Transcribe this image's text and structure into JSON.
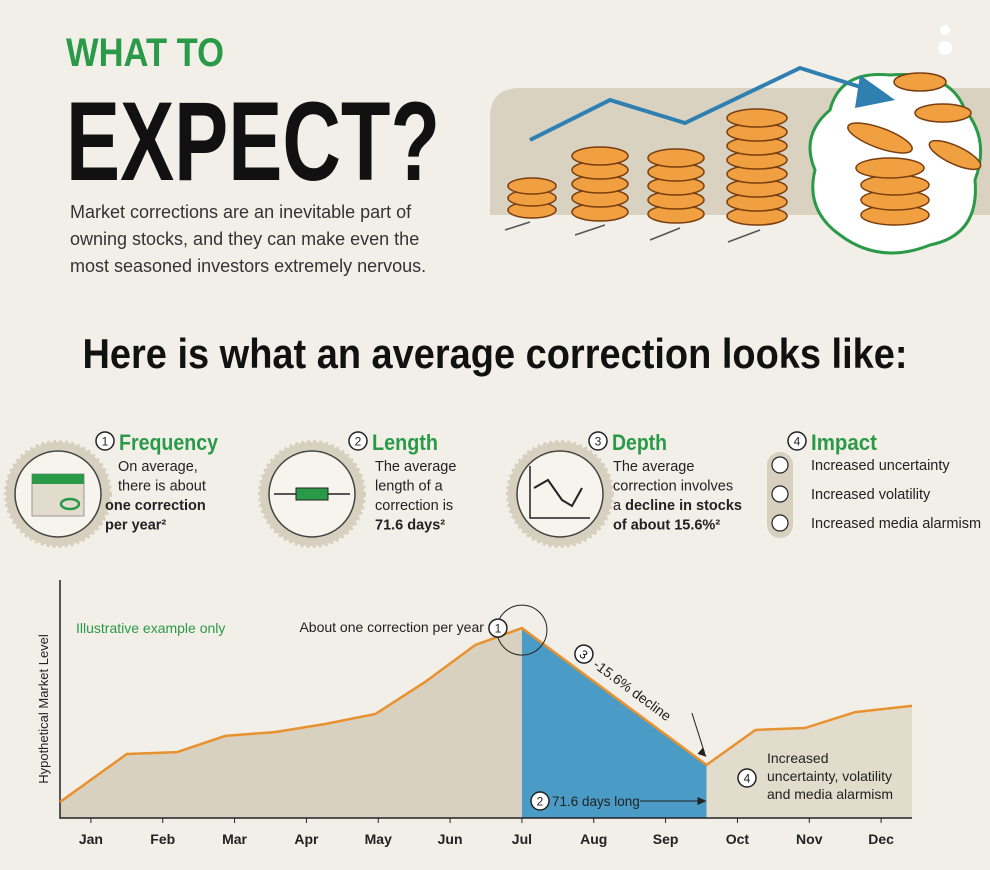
{
  "header": {
    "kicker": "WHAT TO",
    "title": "EXPECT?",
    "intro": [
      "Market corrections are an inevitable part of",
      "owning stocks, and they can make even the",
      "most seasoned investors extremely nervous."
    ]
  },
  "heading": "Here is what an average correction looks like:",
  "stats": [
    {
      "number": "1",
      "title": "Frequency",
      "lines": [
        [
          {
            "text": "On average,"
          }
        ],
        [
          {
            "text": "there is about"
          }
        ],
        [
          {
            "text": "one correction",
            "bold": true
          }
        ],
        [
          {
            "text": "per year²",
            "bold": true
          }
        ]
      ]
    },
    {
      "number": "2",
      "title": "Length",
      "lines": [
        [
          {
            "text": "The average"
          }
        ],
        [
          {
            "text": "length of a"
          }
        ],
        [
          {
            "text": "correction is"
          }
        ],
        [
          {
            "text": "71.6 days²",
            "bold": true
          }
        ]
      ]
    },
    {
      "number": "3",
      "title": "Depth",
      "lines": [
        [
          {
            "text": "The average"
          }
        ],
        [
          {
            "text": "correction involves"
          }
        ],
        [
          {
            "text": "a "
          },
          {
            "text": "decline in stocks",
            "bold": true
          }
        ],
        [
          {
            "text": "of about 15.6%²",
            "bold": true
          }
        ]
      ]
    },
    {
      "number": "4",
      "title": "Impact",
      "items": [
        "Increased uncertainty",
        "Increased volatility",
        "Increased media alarmism"
      ]
    }
  ],
  "chart_data": {
    "type": "line",
    "ylabel": "Hypothetical Market Level",
    "note": "Illustrative example only",
    "x": [
      -0.43,
      0.5,
      1.2,
      1.87,
      2.56,
      3.26,
      3.96,
      4.65,
      5.35,
      6.0,
      8.57,
      9.25,
      9.94,
      10.64,
      11.43
    ],
    "series": [
      {
        "name": "Hypothetical Market Level",
        "color": "#e8922f",
        "values": [
          6.7,
          26.9,
          27.7,
          34.5,
          36.1,
          39.5,
          43.7,
          57.1,
          72.7,
          79.8,
          22.3,
          37.0,
          37.8,
          44.5,
          47.1
        ]
      }
    ],
    "area_color": "#d9d1bf",
    "decline_color": "#4a9cc6",
    "recovery_color": "#e2dccd",
    "xlim": [
      -0.43,
      11.43
    ],
    "ylim": [
      0,
      100
    ],
    "xticks": [
      {
        "value": 0,
        "label": "Jan"
      },
      {
        "value": 1,
        "label": "Feb"
      },
      {
        "value": 2,
        "label": "Mar"
      },
      {
        "value": 3,
        "label": "Apr"
      },
      {
        "value": 4,
        "label": "May"
      },
      {
        "value": 5,
        "label": "Jun"
      },
      {
        "value": 6,
        "label": "Jul"
      },
      {
        "value": 7,
        "label": "Aug"
      },
      {
        "value": 8,
        "label": "Sep"
      },
      {
        "value": 9,
        "label": "Oct"
      },
      {
        "value": 10,
        "label": "Nov"
      },
      {
        "value": 11,
        "label": "Dec"
      }
    ],
    "annotations": [
      {
        "number": "1",
        "text": "About one correction per year"
      },
      {
        "number": "3",
        "text": "-15.6% decline"
      },
      {
        "number": "2",
        "text": "71.6 days long"
      },
      {
        "number": "4",
        "text": [
          "Increased",
          "uncertainty, volatility",
          "and media alarmism"
        ]
      }
    ]
  }
}
